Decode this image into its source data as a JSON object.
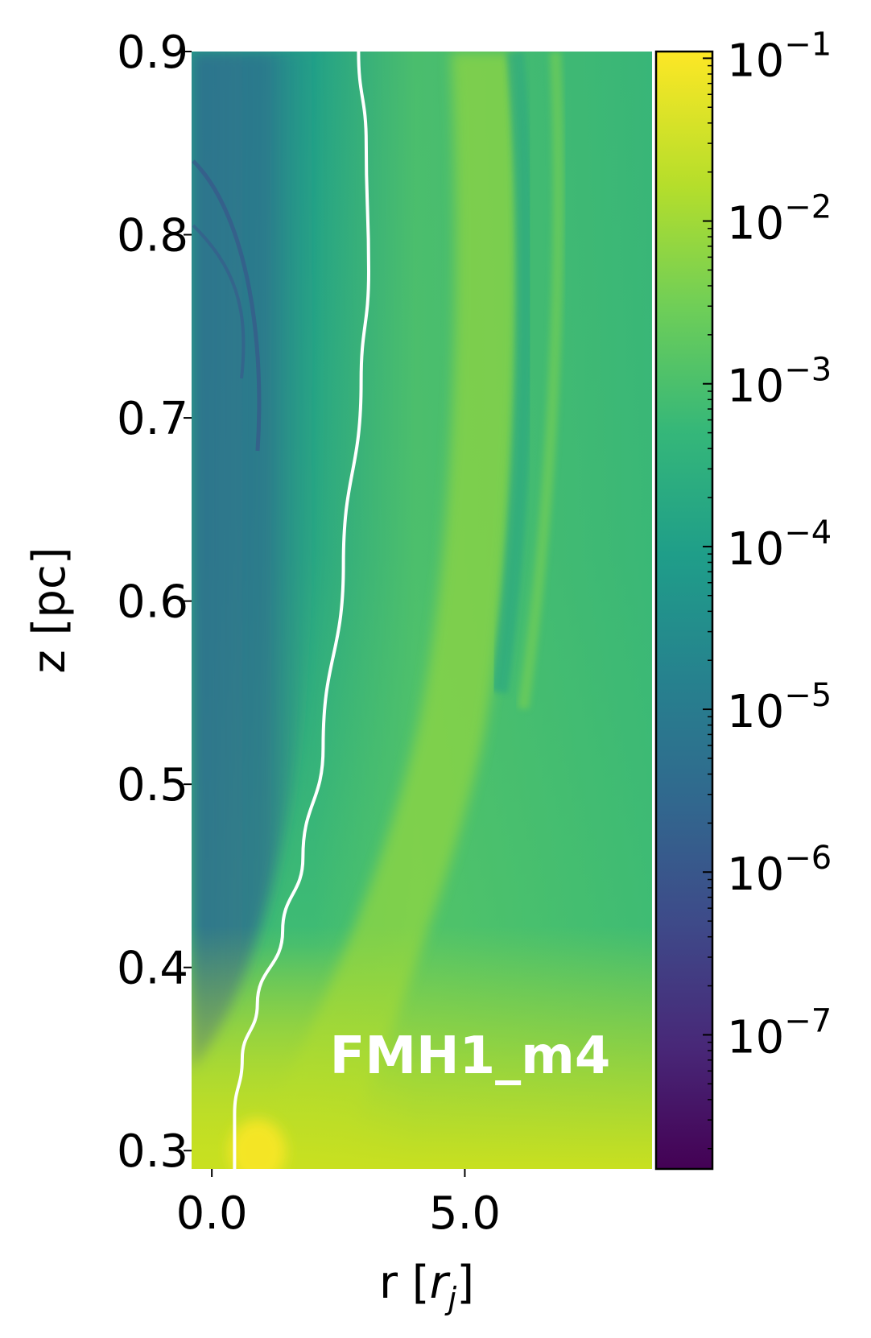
{
  "chart_data": {
    "type": "heatmap",
    "title": "",
    "annotation": "FMH1_m4",
    "xlabel": "r [",
    "xlabel_math": "r",
    "xlabel_sub": "j",
    "xlabel_close": "]",
    "ylabel": "z [pc]",
    "xlim": [
      -0.4,
      8.7
    ],
    "ylim": [
      0.29,
      0.9
    ],
    "x_ticks": [
      0.0,
      5.0
    ],
    "x_tick_labels": [
      "0.0",
      "5.0"
    ],
    "y_ticks": [
      0.3,
      0.4,
      0.5,
      0.6,
      0.7,
      0.8,
      0.9
    ],
    "y_tick_labels": [
      "0.3",
      "0.4",
      "0.5",
      "0.6",
      "0.7",
      "0.8",
      "0.9"
    ],
    "colormap": "viridis",
    "color_scale": "log",
    "colorbar_range": [
      1.5e-08,
      0.11
    ],
    "colorbar_ticks": [
      {
        "value": 1e-07,
        "base": "10",
        "exponent": "−7"
      },
      {
        "value": 1e-06,
        "base": "10",
        "exponent": "−6"
      },
      {
        "value": 1e-05,
        "base": "10",
        "exponent": "−5"
      },
      {
        "value": 0.0001,
        "base": "10",
        "exponent": "−4"
      },
      {
        "value": 0.001,
        "base": "10",
        "exponent": "−3"
      },
      {
        "value": 0.01,
        "base": "10",
        "exponent": "−2"
      },
      {
        "value": 0.1,
        "base": "10",
        "exponent": "−1"
      }
    ],
    "contour_line": {
      "color": "#ffffff",
      "points": [
        [
          0.45,
          0.29
        ],
        [
          0.45,
          0.32
        ],
        [
          0.6,
          0.35
        ],
        [
          0.9,
          0.38
        ],
        [
          1.4,
          0.42
        ],
        [
          1.8,
          0.46
        ],
        [
          2.2,
          0.52
        ],
        [
          2.6,
          0.62
        ],
        [
          2.95,
          0.72
        ],
        [
          3.1,
          0.78
        ],
        [
          3.05,
          0.85
        ],
        [
          2.9,
          0.9
        ]
      ]
    },
    "colors": {
      "bg_low": "#2f6a8e",
      "bg_mid": "#22a384",
      "bg_high": "#5ec962",
      "peak": "#fde725"
    }
  }
}
